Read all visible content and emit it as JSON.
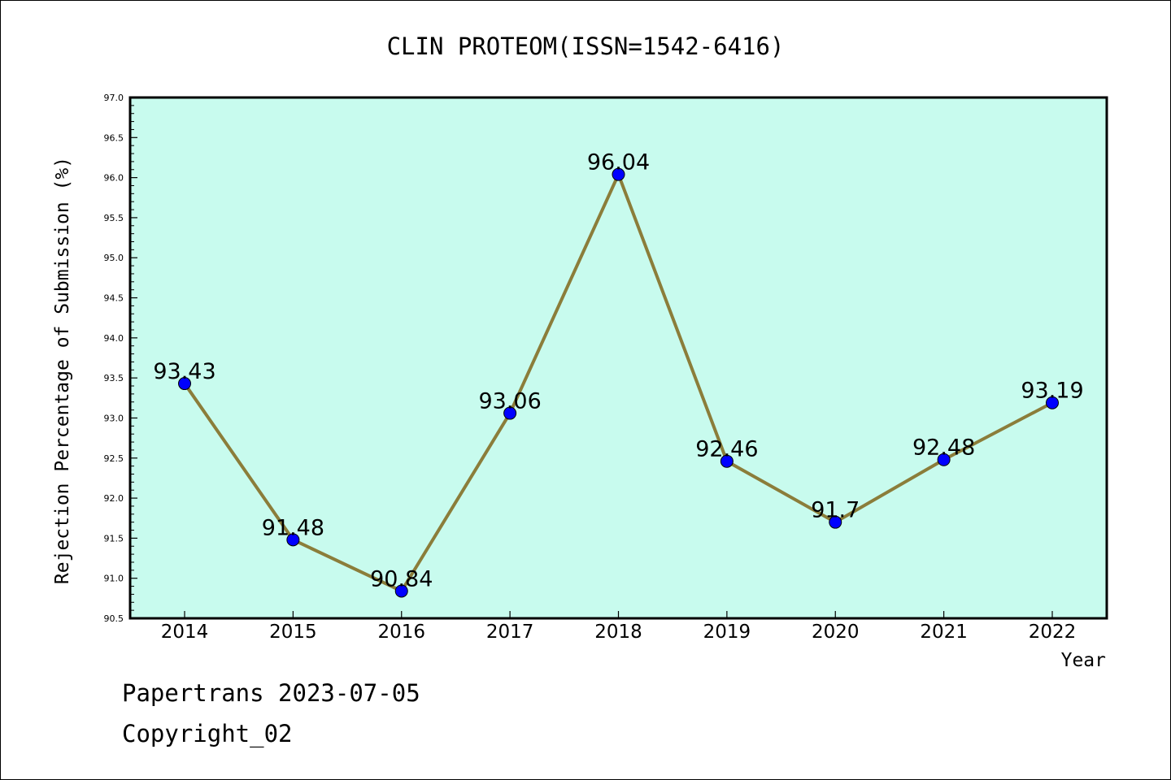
{
  "chart_data": {
    "type": "line",
    "title": "CLIN PROTEOM(ISSN=1542-6416)",
    "xlabel": "Year",
    "ylabel": "Rejection Percentage of Submission (%)",
    "categories": [
      "2014",
      "2015",
      "2016",
      "2017",
      "2018",
      "2019",
      "2020",
      "2021",
      "2022"
    ],
    "series": [
      {
        "values": [
          93.43,
          91.48,
          90.84,
          93.06,
          96.04,
          92.46,
          91.7,
          92.48,
          93.19
        ],
        "labels": [
          "93.43",
          "91.48",
          "90.84",
          "93.06",
          "96.04",
          "92.46",
          "91.7",
          "92.48",
          "93.19"
        ]
      }
    ],
    "ylim": [
      90.5,
      97.0
    ],
    "yticks": [
      "90.5",
      "91.0",
      "91.5",
      "92.0",
      "92.5",
      "93.0",
      "93.5",
      "94.0",
      "94.5",
      "95.0",
      "95.5",
      "96.0",
      "96.5",
      "97.0"
    ],
    "grid": false,
    "colors": {
      "plot_background": "#c8fbee",
      "line": "#8b7d3a",
      "marker": "#0000ff"
    }
  },
  "footer": {
    "line1": "Papertrans 2023-07-05",
    "line2": "Copyright_02"
  }
}
